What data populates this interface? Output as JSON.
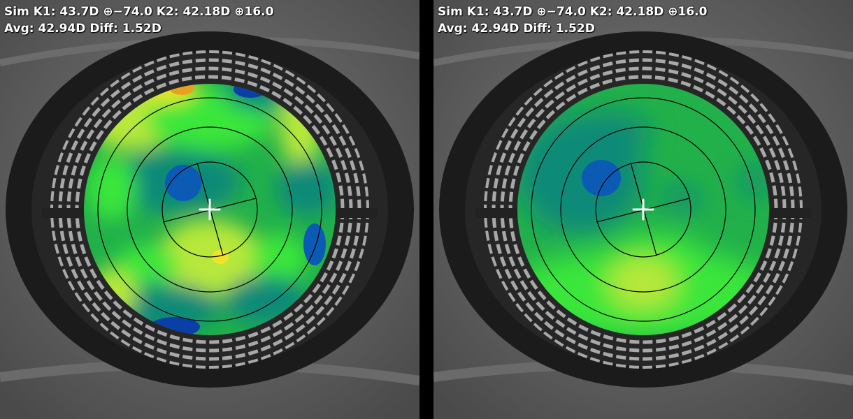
{
  "panels": [
    {
      "id": "left",
      "line1": "Sim K1: 43.7D ⊕−74.0 K2: 42.18D ⊕16.0",
      "line2": "Avg: 42.94D Diff: 1.52D",
      "map_variant": "detailed"
    },
    {
      "id": "right",
      "line1": "Sim K1: 43.7D ⊕−74.0 K2: 42.18D ⊕16.0",
      "line2": "Avg: 42.94D Diff: 1.52D",
      "map_variant": "smoothed"
    }
  ],
  "colors": {
    "dark_blue": "#0a3fa8",
    "blue": "#0b5bb5",
    "teal": "#0e8a78",
    "green": "#22b04a",
    "bright_green": "#3be63a",
    "yellow_green": "#b8e83a",
    "yellow": "#f0e428",
    "orange": "#e8a020"
  }
}
